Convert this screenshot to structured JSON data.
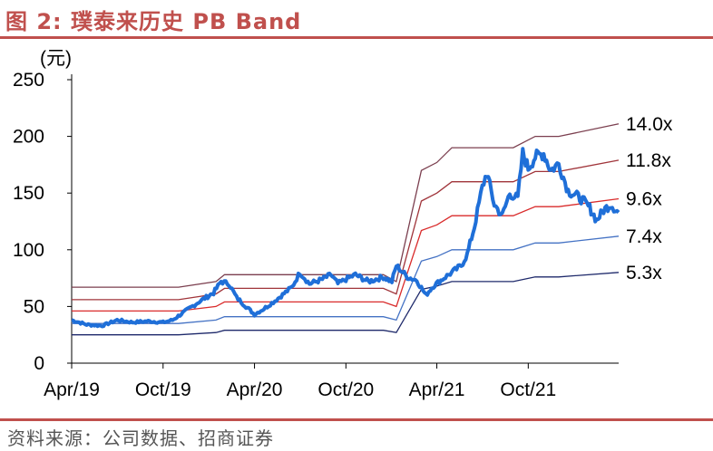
{
  "header": {
    "title": "图 2:  璞泰来历史 PB Band"
  },
  "footer": {
    "source": "资料来源：公司数据、招商证券"
  },
  "chart_data": {
    "type": "line",
    "title": "璞泰来历史 PB Band",
    "unit_label": "(元)",
    "ylim": [
      0,
      250
    ],
    "yticks": [
      "0",
      "50",
      "100",
      "150",
      "200",
      "250"
    ],
    "xlim": [
      "2019-04-01",
      "2022-03-31"
    ],
    "xticks": [
      {
        "date": "2019-04-01",
        "label": "Apr/19"
      },
      {
        "date": "2019-10-01",
        "label": "Oct/19"
      },
      {
        "date": "2020-04-01",
        "label": "Apr/20"
      },
      {
        "date": "2020-10-01",
        "label": "Oct/20"
      },
      {
        "date": "2021-04-01",
        "label": "Apr/21"
      },
      {
        "date": "2021-10-01",
        "label": "Oct/21"
      }
    ],
    "legend": "labels at right end of each band",
    "bands": [
      {
        "name": "14.0x",
        "color": "#7B3F4F",
        "points": [
          [
            "2019-04-01",
            67
          ],
          [
            "2019-11-01",
            67
          ],
          [
            "2020-01-15",
            72
          ],
          [
            "2020-02-01",
            78
          ],
          [
            "2020-03-15",
            78
          ],
          [
            "2020-12-15",
            78
          ],
          [
            "2021-01-10",
            72
          ],
          [
            "2021-03-01",
            170
          ],
          [
            "2021-04-01",
            177
          ],
          [
            "2021-05-01",
            190
          ],
          [
            "2021-09-01",
            190
          ],
          [
            "2021-10-15",
            200
          ],
          [
            "2021-12-01",
            200
          ],
          [
            "2022-03-31",
            211
          ]
        ]
      },
      {
        "name": "11.8x",
        "color": "#A0343A",
        "points": [
          [
            "2019-04-01",
            56
          ],
          [
            "2019-11-01",
            56
          ],
          [
            "2020-01-15",
            61
          ],
          [
            "2020-02-01",
            66
          ],
          [
            "2020-03-15",
            66
          ],
          [
            "2020-12-15",
            66
          ],
          [
            "2021-01-10",
            61
          ],
          [
            "2021-03-01",
            143
          ],
          [
            "2021-04-01",
            150
          ],
          [
            "2021-05-01",
            160
          ],
          [
            "2021-09-01",
            160
          ],
          [
            "2021-10-15",
            169
          ],
          [
            "2021-12-01",
            169
          ],
          [
            "2022-03-31",
            179
          ]
        ]
      },
      {
        "name": "9.6x",
        "color": "#D92B2B",
        "points": [
          [
            "2019-04-01",
            46
          ],
          [
            "2019-11-01",
            46
          ],
          [
            "2020-01-15",
            50
          ],
          [
            "2020-02-01",
            54
          ],
          [
            "2020-03-15",
            54
          ],
          [
            "2020-12-15",
            54
          ],
          [
            "2021-01-10",
            50
          ],
          [
            "2021-03-01",
            117
          ],
          [
            "2021-04-01",
            122
          ],
          [
            "2021-05-01",
            130
          ],
          [
            "2021-09-01",
            130
          ],
          [
            "2021-10-15",
            138
          ],
          [
            "2021-12-01",
            138
          ],
          [
            "2022-03-31",
            145
          ]
        ]
      },
      {
        "name": "7.4x",
        "color": "#4472C4",
        "points": [
          [
            "2019-04-01",
            35
          ],
          [
            "2019-11-01",
            35
          ],
          [
            "2020-01-15",
            38
          ],
          [
            "2020-02-01",
            41
          ],
          [
            "2020-03-15",
            41
          ],
          [
            "2020-12-15",
            41
          ],
          [
            "2021-01-10",
            38
          ],
          [
            "2021-03-01",
            90
          ],
          [
            "2021-04-01",
            94
          ],
          [
            "2021-05-01",
            100
          ],
          [
            "2021-09-01",
            100
          ],
          [
            "2021-10-15",
            106
          ],
          [
            "2021-12-01",
            106
          ],
          [
            "2022-03-31",
            112
          ]
        ]
      },
      {
        "name": "5.3x",
        "color": "#1F2A6B",
        "points": [
          [
            "2019-04-01",
            25
          ],
          [
            "2019-11-01",
            25
          ],
          [
            "2020-01-15",
            27
          ],
          [
            "2020-02-01",
            29
          ],
          [
            "2020-03-15",
            29
          ],
          [
            "2020-12-15",
            29
          ],
          [
            "2021-01-10",
            27
          ],
          [
            "2021-03-01",
            65
          ],
          [
            "2021-04-01",
            68
          ],
          [
            "2021-05-01",
            72
          ],
          [
            "2021-09-01",
            72
          ],
          [
            "2021-10-15",
            76
          ],
          [
            "2021-12-01",
            76
          ],
          [
            "2022-03-31",
            80
          ]
        ]
      }
    ],
    "price": {
      "color": "#1F6FD8",
      "points": [
        [
          "2019-04-01",
          38
        ],
        [
          "2019-05-01",
          34
        ],
        [
          "2019-06-01",
          33
        ],
        [
          "2019-07-01",
          38
        ],
        [
          "2019-08-01",
          36
        ],
        [
          "2019-09-01",
          37
        ],
        [
          "2019-10-01",
          36
        ],
        [
          "2019-10-20",
          38
        ],
        [
          "2019-11-15",
          46
        ],
        [
          "2019-12-15",
          55
        ],
        [
          "2020-01-10",
          62
        ],
        [
          "2020-01-25",
          72
        ],
        [
          "2020-02-10",
          70
        ],
        [
          "2020-02-25",
          58
        ],
        [
          "2020-03-15",
          50
        ],
        [
          "2020-04-01",
          43
        ],
        [
          "2020-04-20",
          48
        ],
        [
          "2020-05-15",
          56
        ],
        [
          "2020-06-15",
          67
        ],
        [
          "2020-07-01",
          80
        ],
        [
          "2020-07-20",
          70
        ],
        [
          "2020-08-15",
          74
        ],
        [
          "2020-09-01",
          78
        ],
        [
          "2020-09-15",
          70
        ],
        [
          "2020-10-01",
          74
        ],
        [
          "2020-10-20",
          78
        ],
        [
          "2020-11-15",
          72
        ],
        [
          "2020-12-15",
          76
        ],
        [
          "2021-01-01",
          72
        ],
        [
          "2021-01-10",
          86
        ],
        [
          "2021-02-01",
          76
        ],
        [
          "2021-02-20",
          73
        ],
        [
          "2021-03-10",
          60
        ],
        [
          "2021-03-25",
          68
        ],
        [
          "2021-04-15",
          75
        ],
        [
          "2021-05-01",
          80
        ],
        [
          "2021-05-20",
          86
        ],
        [
          "2021-06-01",
          96
        ],
        [
          "2021-06-15",
          120
        ],
        [
          "2021-07-01",
          155
        ],
        [
          "2021-07-10",
          168
        ],
        [
          "2021-07-25",
          140
        ],
        [
          "2021-08-10",
          130
        ],
        [
          "2021-08-25",
          150
        ],
        [
          "2021-09-10",
          145
        ],
        [
          "2021-09-20",
          185
        ],
        [
          "2021-10-01",
          172
        ],
        [
          "2021-10-15",
          182
        ],
        [
          "2021-11-01",
          185
        ],
        [
          "2021-11-15",
          170
        ],
        [
          "2021-12-01",
          176
        ],
        [
          "2021-12-20",
          152
        ],
        [
          "2022-01-15",
          145
        ],
        [
          "2022-02-01",
          137
        ],
        [
          "2022-02-15",
          126
        ],
        [
          "2022-03-01",
          135
        ],
        [
          "2022-03-15",
          140
        ],
        [
          "2022-03-31",
          133
        ]
      ]
    }
  }
}
